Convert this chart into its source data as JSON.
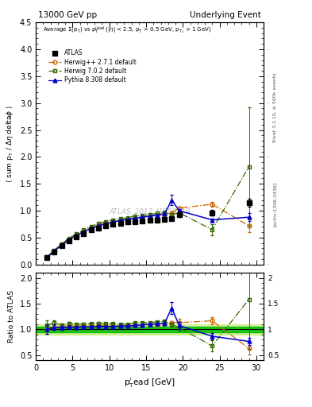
{
  "title_left": "13000 GeV pp",
  "title_right": "Underlying Event",
  "watermark": "ATLAS_2017_I1509919",
  "right_label": "Rivet 3.1.10, ≥ 500k events",
  "arxiv_label": "[arXiv:1306.3436]",
  "xlim": [
    0,
    31
  ],
  "ylim_main": [
    0,
    4.5
  ],
  "ylim_ratio": [
    0.4,
    2.1
  ],
  "yticks_main": [
    0.0,
    0.5,
    1.0,
    1.5,
    2.0,
    2.5,
    3.0,
    3.5,
    4.0,
    4.5
  ],
  "yticks_ratio": [
    0.5,
    1.0,
    1.5,
    2.0
  ],
  "atlas_x": [
    1.5,
    2.5,
    3.5,
    4.5,
    5.5,
    6.5,
    7.5,
    8.5,
    9.5,
    10.5,
    11.5,
    12.5,
    13.5,
    14.5,
    15.5,
    16.5,
    17.5,
    18.5,
    19.5,
    24.0,
    29.0
  ],
  "atlas_y": [
    0.13,
    0.24,
    0.35,
    0.44,
    0.52,
    0.58,
    0.64,
    0.68,
    0.72,
    0.75,
    0.77,
    0.79,
    0.8,
    0.81,
    0.82,
    0.83,
    0.84,
    0.85,
    0.93,
    0.96,
    1.15
  ],
  "atlas_yerr": [
    0.01,
    0.01,
    0.01,
    0.01,
    0.01,
    0.01,
    0.01,
    0.01,
    0.01,
    0.01,
    0.01,
    0.01,
    0.01,
    0.01,
    0.01,
    0.01,
    0.01,
    0.01,
    0.05,
    0.05,
    0.07
  ],
  "h271_x": [
    1.5,
    2.5,
    3.5,
    4.5,
    5.5,
    6.5,
    7.5,
    8.5,
    9.5,
    10.5,
    11.5,
    12.5,
    13.5,
    14.5,
    15.5,
    16.5,
    17.5,
    18.5,
    19.5,
    24.0,
    29.0
  ],
  "h271_y": [
    0.13,
    0.25,
    0.37,
    0.47,
    0.55,
    0.62,
    0.68,
    0.73,
    0.77,
    0.8,
    0.82,
    0.84,
    0.86,
    0.88,
    0.9,
    0.91,
    0.93,
    0.96,
    1.05,
    1.12,
    0.72
  ],
  "h271_yerr": [
    0.005,
    0.005,
    0.005,
    0.005,
    0.005,
    0.005,
    0.005,
    0.005,
    0.005,
    0.005,
    0.005,
    0.005,
    0.005,
    0.005,
    0.005,
    0.005,
    0.005,
    0.01,
    0.03,
    0.04,
    0.12
  ],
  "h702_x": [
    1.5,
    2.5,
    3.5,
    4.5,
    5.5,
    6.5,
    7.5,
    8.5,
    9.5,
    10.5,
    11.5,
    12.5,
    13.5,
    14.5,
    15.5,
    16.5,
    17.5,
    18.5,
    19.5,
    24.0,
    29.0
  ],
  "h702_y": [
    0.14,
    0.27,
    0.38,
    0.49,
    0.57,
    0.64,
    0.71,
    0.76,
    0.8,
    0.83,
    0.85,
    0.87,
    0.9,
    0.91,
    0.93,
    0.95,
    0.97,
    0.93,
    0.96,
    0.65,
    1.82
  ],
  "h702_yerr": [
    0.005,
    0.005,
    0.005,
    0.005,
    0.005,
    0.005,
    0.005,
    0.005,
    0.005,
    0.005,
    0.005,
    0.005,
    0.005,
    0.005,
    0.005,
    0.005,
    0.005,
    0.03,
    0.03,
    0.1,
    1.1
  ],
  "py_x": [
    1.5,
    2.5,
    3.5,
    4.5,
    5.5,
    6.5,
    7.5,
    8.5,
    9.5,
    10.5,
    11.5,
    12.5,
    13.5,
    14.5,
    15.5,
    16.5,
    17.5,
    18.5,
    19.5,
    24.0,
    29.0
  ],
  "py_y": [
    0.13,
    0.25,
    0.36,
    0.46,
    0.54,
    0.61,
    0.67,
    0.72,
    0.76,
    0.79,
    0.82,
    0.84,
    0.86,
    0.88,
    0.9,
    0.92,
    0.94,
    1.2,
    1.0,
    0.83,
    0.88
  ],
  "py_yerr": [
    0.005,
    0.005,
    0.005,
    0.005,
    0.005,
    0.005,
    0.005,
    0.005,
    0.005,
    0.005,
    0.005,
    0.005,
    0.005,
    0.005,
    0.005,
    0.005,
    0.005,
    0.1,
    0.03,
    0.03,
    0.07
  ],
  "col_atlas": "#000000",
  "col_h271": "#cc6600",
  "col_h702": "#336600",
  "col_py": "#0000cc",
  "band_inner": 0.05,
  "band_outer": 0.1,
  "band_inner_color": "#00bb00",
  "band_outer_color": "#ccee88"
}
